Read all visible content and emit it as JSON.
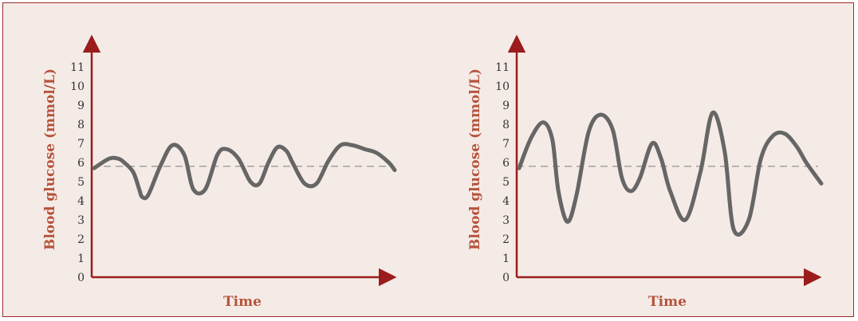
{
  "colors": {
    "background": "#f5ebe6",
    "border": "#9b2a2a",
    "axis": "#9b1c1c",
    "label": "#b5533c",
    "curve": "#666666",
    "reference_line": "#888888"
  },
  "chart_data": [
    {
      "type": "line",
      "xlabel": "Time",
      "ylabel": "Blood glucose (mmol/L)",
      "ylim": [
        0,
        11
      ],
      "yticks": [
        "0",
        "1",
        "2",
        "3",
        "4",
        "5",
        "6",
        "7",
        "8",
        "9",
        "10",
        "11"
      ],
      "xticks": false,
      "grid": false,
      "reference_line": {
        "y": 5.8,
        "style": "dashed"
      },
      "series": [
        {
          "x": [
            0,
            5,
            8,
            10,
            13,
            15,
            16,
            18,
            22,
            26,
            30,
            33,
            37,
            41,
            44,
            48,
            52,
            55,
            58,
            61,
            64,
            66,
            70,
            74,
            78,
            82,
            86,
            90,
            94,
            98,
            100
          ],
          "values": [
            5.7,
            6.2,
            6.2,
            6.0,
            5.5,
            4.6,
            4.2,
            4.3,
            5.8,
            6.9,
            6.4,
            4.6,
            4.6,
            6.4,
            6.7,
            6.2,
            5.0,
            4.9,
            6.0,
            6.8,
            6.6,
            6.0,
            4.9,
            4.9,
            6.1,
            6.9,
            6.9,
            6.7,
            6.5,
            6.0,
            5.6
          ]
        }
      ]
    },
    {
      "type": "line",
      "xlabel": "Time",
      "ylabel": "Blood glucose (mmol/L)",
      "ylim": [
        0,
        11
      ],
      "yticks": [
        "0",
        "1",
        "2",
        "3",
        "4",
        "5",
        "6",
        "7",
        "8",
        "9",
        "10",
        "11"
      ],
      "xticks": false,
      "grid": false,
      "reference_line": {
        "y": 5.8,
        "style": "dashed"
      },
      "series": [
        {
          "x": [
            0,
            4,
            8,
            11,
            13,
            16,
            19,
            23,
            27,
            31,
            34,
            37,
            40,
            44,
            47,
            50,
            55,
            60,
            64,
            68,
            71,
            76,
            80,
            84,
            88,
            92,
            95,
            100
          ],
          "values": [
            5.7,
            7.3,
            8.1,
            7.2,
            4.5,
            2.9,
            4.3,
            7.6,
            8.5,
            7.7,
            5.2,
            4.5,
            5.2,
            7.0,
            6.2,
            4.5,
            3.0,
            5.5,
            8.6,
            6.6,
            2.5,
            3.0,
            6.2,
            7.4,
            7.5,
            6.8,
            6.0,
            4.9
          ]
        }
      ]
    }
  ]
}
